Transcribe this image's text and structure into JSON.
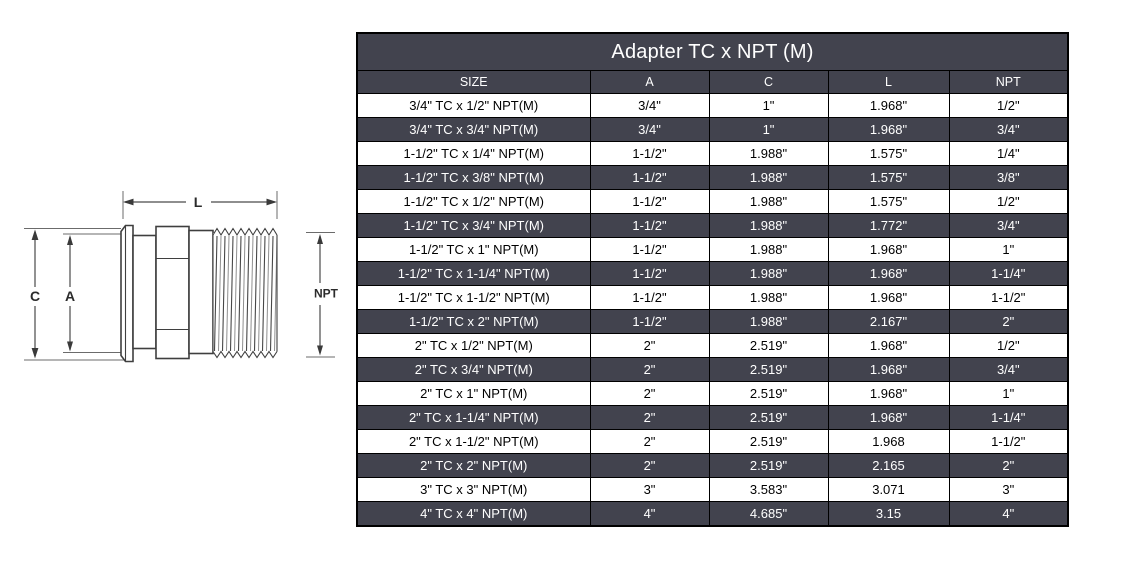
{
  "page": {
    "background": "#ffffff"
  },
  "colors": {
    "table_dark": "#42434e",
    "table_light": "#ffffff",
    "border": "#000000",
    "text_on_dark": "#ffffff",
    "text_on_light": "#000000",
    "diagram_line": "#3f3f3f",
    "diagram_dim_line": "#4a4a4a"
  },
  "diagram": {
    "labels": {
      "length": "L",
      "outer": "C",
      "inner": "A",
      "thread": "NPT"
    }
  },
  "table": {
    "title": "Adapter TC x NPT (M)",
    "columns": [
      "SIZE",
      "A",
      "C",
      "L",
      "NPT"
    ],
    "rows": [
      [
        "3/4\" TC x 1/2\" NPT(M)",
        "3/4\"",
        "1\"",
        "1.968\"",
        "1/2\""
      ],
      [
        "3/4\" TC x 3/4\" NPT(M)",
        "3/4\"",
        "1\"",
        "1.968\"",
        "3/4\""
      ],
      [
        "1-1/2\" TC x 1/4\" NPT(M)",
        "1-1/2\"",
        "1.988\"",
        "1.575\"",
        "1/4\""
      ],
      [
        "1-1/2\" TC x 3/8\" NPT(M)",
        "1-1/2\"",
        "1.988\"",
        "1.575\"",
        "3/8\""
      ],
      [
        "1-1/2\" TC x 1/2\" NPT(M)",
        "1-1/2\"",
        "1.988\"",
        "1.575\"",
        "1/2\""
      ],
      [
        "1-1/2\" TC x 3/4\" NPT(M)",
        "1-1/2\"",
        "1.988\"",
        "1.772\"",
        "3/4\""
      ],
      [
        "1-1/2\" TC x 1\" NPT(M)",
        "1-1/2\"",
        "1.988\"",
        "1.968\"",
        "1\""
      ],
      [
        "1-1/2\" TC x 1-1/4\" NPT(M)",
        "1-1/2\"",
        "1.988\"",
        "1.968\"",
        "1-1/4\""
      ],
      [
        "1-1/2\" TC x 1-1/2\" NPT(M)",
        "1-1/2\"",
        "1.988\"",
        "1.968\"",
        "1-1/2\""
      ],
      [
        "1-1/2\" TC x 2\" NPT(M)",
        "1-1/2\"",
        "1.988\"",
        "2.167\"",
        "2\""
      ],
      [
        "2\" TC x 1/2\" NPT(M)",
        "2\"",
        "2.519\"",
        "1.968\"",
        "1/2\""
      ],
      [
        "2\" TC x 3/4\" NPT(M)",
        "2\"",
        "2.519\"",
        "1.968\"",
        "3/4\""
      ],
      [
        "2\" TC x 1\" NPT(M)",
        "2\"",
        "2.519\"",
        "1.968\"",
        "1\""
      ],
      [
        "2\" TC x 1-1/4\" NPT(M)",
        "2\"",
        "2.519\"",
        "1.968\"",
        "1-1/4\""
      ],
      [
        "2\" TC x 1-1/2\" NPT(M)",
        "2\"",
        "2.519\"",
        "1.968",
        "1-1/2\""
      ],
      [
        "2\" TC x 2\" NPT(M)",
        "2\"",
        "2.519\"",
        "2.165",
        "2\""
      ],
      [
        "3\" TC x 3\" NPT(M)",
        "3\"",
        "3.583\"",
        "3.071",
        "3\""
      ],
      [
        "4\" TC x 4\" NPT(M)",
        "4\"",
        "4.685\"",
        "3.15",
        "4\""
      ]
    ]
  }
}
